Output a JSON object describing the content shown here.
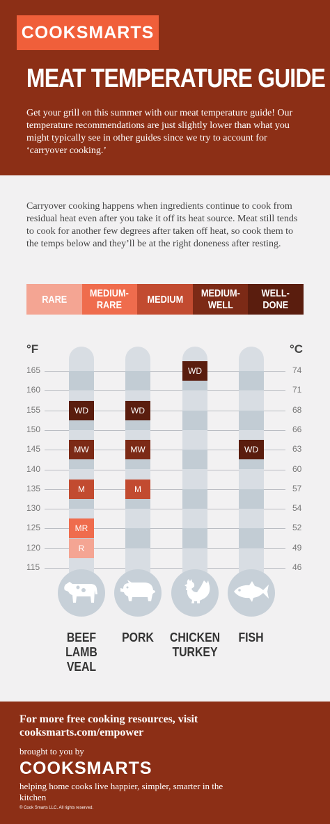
{
  "header": {
    "logo": "COOKSMARTS",
    "title": "MEAT TEMPERATURE GUIDE",
    "intro": "Get your grill on this summer with our meat temperature guide! Our temperature recommendations are just slightly lower than what you might typically see in other guides since we try to account for ‘carryover cooking.’"
  },
  "explanation": "Carryover cooking happens when ingredients continue to cook from residual heat even after you take it off its heat source. Meat still tends to cook for another few degrees after taken off heat, so cook them to the temps below and they’ll be at the right doneness after resting.",
  "legend": [
    {
      "code": "R",
      "label": "RARE",
      "color": "#f4a593"
    },
    {
      "code": "MR",
      "label": "MEDIUM-\nRARE",
      "color": "#ef6c4d"
    },
    {
      "code": "M",
      "label": "MEDIUM",
      "color": "#c24b30"
    },
    {
      "code": "MW",
      "label": "MEDIUM-\nWELL",
      "color": "#7c2a16"
    },
    {
      "code": "WD",
      "label": "WELL-\nDONE",
      "color": "#5a1d0e"
    }
  ],
  "chart_data": {
    "type": "table",
    "fahrenheit_label": "°F",
    "celsius_label": "°C",
    "fahrenheit_ticks": [
      "165",
      "160",
      "155",
      "150",
      "145",
      "140",
      "135",
      "130",
      "125",
      "120",
      "115"
    ],
    "celsius_ticks": [
      "74",
      "71",
      "68",
      "66",
      "63",
      "60",
      "57",
      "54",
      "52",
      "49",
      "46"
    ],
    "fahrenheit_range": [
      115,
      165
    ],
    "meats": [
      {
        "name": "BEEF\nLAMB\nVEAL",
        "icon": "cow-icon",
        "markers": [
          {
            "code": "WD",
            "temp_f": 155
          },
          {
            "code": "MW",
            "temp_f": 145
          },
          {
            "code": "M",
            "temp_f": 135
          },
          {
            "code": "MR",
            "temp_f": 125
          },
          {
            "code": "R",
            "temp_f": 120
          }
        ]
      },
      {
        "name": "PORK",
        "icon": "pig-icon",
        "markers": [
          {
            "code": "WD",
            "temp_f": 155
          },
          {
            "code": "MW",
            "temp_f": 145
          },
          {
            "code": "M",
            "temp_f": 135
          }
        ]
      },
      {
        "name": "CHICKEN\nTURKEY",
        "icon": "chicken-icon",
        "markers": [
          {
            "code": "WD",
            "temp_f": 165
          }
        ]
      },
      {
        "name": "FISH",
        "icon": "fish-icon",
        "markers": [
          {
            "code": "WD",
            "temp_f": 145
          }
        ]
      }
    ]
  },
  "footer": {
    "resources": "For more free cooking resources, visit cooksmarts.com/empower",
    "brought_by": "brought to you by",
    "logo": "COOKSMARTS",
    "tagline": "helping home cooks live happier, simpler, smarter in the kitchen",
    "copyright": "© Cook Smarts LLC. All rights reserved."
  }
}
